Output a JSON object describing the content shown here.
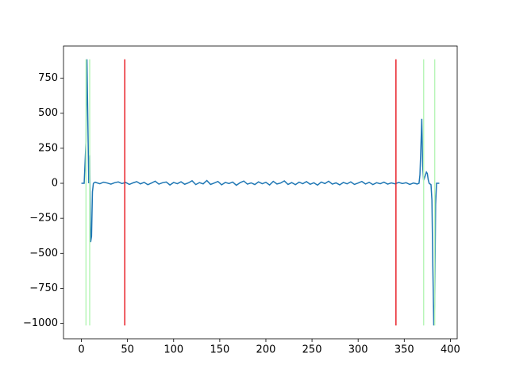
{
  "chart_data": {
    "type": "line",
    "x": [
      0,
      3,
      5,
      6,
      7,
      8,
      9,
      10,
      11,
      12,
      13,
      15,
      16,
      20,
      24,
      28,
      32,
      36,
      40,
      44,
      48,
      52,
      56,
      60,
      64,
      68,
      72,
      76,
      80,
      84,
      88,
      92,
      96,
      100,
      104,
      108,
      112,
      116,
      120,
      124,
      128,
      132,
      136,
      140,
      144,
      148,
      152,
      156,
      160,
      164,
      168,
      172,
      176,
      180,
      184,
      188,
      192,
      196,
      200,
      204,
      208,
      212,
      216,
      220,
      224,
      228,
      232,
      236,
      240,
      244,
      248,
      252,
      256,
      260,
      264,
      268,
      272,
      276,
      280,
      284,
      288,
      292,
      296,
      300,
      304,
      308,
      312,
      316,
      320,
      324,
      328,
      332,
      336,
      340,
      344,
      348,
      352,
      356,
      360,
      364,
      366,
      367,
      368,
      369,
      370,
      371,
      372,
      374,
      375,
      376,
      377,
      379,
      380,
      381,
      382,
      383,
      384,
      385,
      388
    ],
    "series": [
      {
        "color": "#1f77b4",
        "values": [
          0,
          0,
          300,
          885,
          450,
          0,
          200,
          -420,
          -380,
          -60,
          0,
          8,
          5,
          -3,
          8,
          2,
          -6,
          4,
          10,
          -2,
          6,
          -8,
          3,
          12,
          -4,
          7,
          -10,
          2,
          15,
          -6,
          4,
          9,
          -12,
          6,
          -3,
          11,
          -7,
          3,
          18,
          -9,
          5,
          -4,
          20,
          -8,
          2,
          13,
          -11,
          6,
          -2,
          9,
          -14,
          4,
          16,
          -6,
          3,
          -9,
          10,
          -3,
          7,
          -12,
          14,
          -5,
          2,
          17,
          -8,
          5,
          -10,
          8,
          -3,
          12,
          -7,
          4,
          -13,
          9,
          -2,
          15,
          -6,
          3,
          -11,
          6,
          -4,
          10,
          -8,
          2,
          13,
          -5,
          7,
          -9,
          4,
          -3,
          8,
          -6,
          3,
          -4,
          6,
          -2,
          4,
          -8,
          2,
          -5,
          0,
          60,
          250,
          460,
          120,
          20,
          40,
          80,
          70,
          25,
          0,
          -10,
          -120,
          -600,
          -1015,
          -870,
          -150,
          0,
          0
        ]
      }
    ],
    "vlines": [
      {
        "x": 5,
        "ymin": -1015,
        "ymax": 885,
        "color": "#b8f5b8"
      },
      {
        "x": 9,
        "ymin": -1015,
        "ymax": 885,
        "color": "#b8f5b8"
      },
      {
        "x": 47,
        "ymin": -1015,
        "ymax": 885,
        "color": "#e8222a"
      },
      {
        "x": 341,
        "ymin": -1015,
        "ymax": 885,
        "color": "#e8222a"
      },
      {
        "x": 371,
        "ymin": -1015,
        "ymax": 885,
        "color": "#b8f5b8"
      },
      {
        "x": 383,
        "ymin": -1015,
        "ymax": 885,
        "color": "#b8f5b8"
      }
    ],
    "xlim": [
      -19.4,
      407.4
    ],
    "ylim": [
      -1110,
      980
    ],
    "xticks": [
      0,
      50,
      100,
      150,
      200,
      250,
      300,
      350,
      400
    ],
    "yticks": [
      {
        "value": -1000,
        "label": "−1000"
      },
      {
        "value": -750,
        "label": "−750"
      },
      {
        "value": -500,
        "label": "−500"
      },
      {
        "value": -250,
        "label": "−250"
      },
      0,
      250,
      500,
      750
    ]
  }
}
